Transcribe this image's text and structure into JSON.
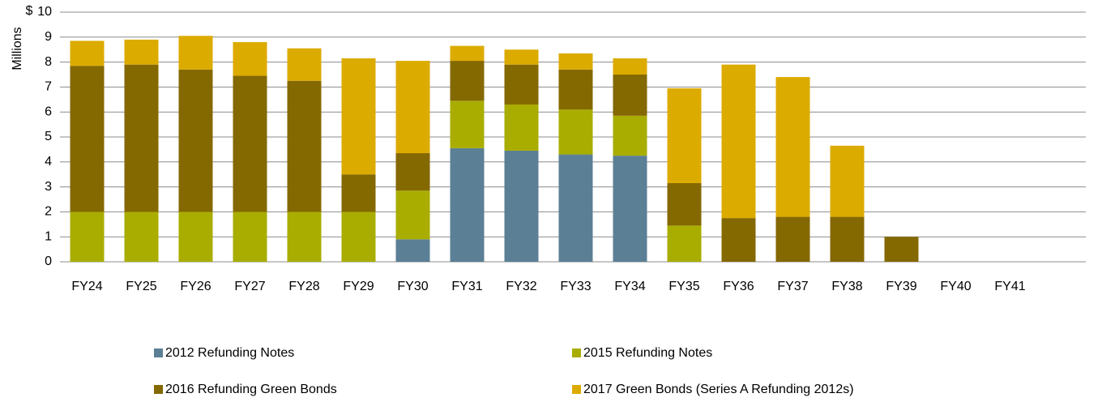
{
  "chart_data": {
    "type": "stacked_bar",
    "ylabel": "Millions",
    "y_unit_label": "$",
    "categories": [
      "FY24",
      "FY25",
      "FY26",
      "FY27",
      "FY28",
      "FY29",
      "FY30",
      "FY31",
      "FY32",
      "FY33",
      "FY34",
      "FY35",
      "FY36",
      "FY37",
      "FY38",
      "FY39",
      "FY40",
      "FY41"
    ],
    "series": [
      {
        "name": "2012 Refunding Notes",
        "color": "#5b7f95",
        "values": [
          0,
          0,
          0,
          0,
          0,
          0,
          0.9,
          4.55,
          4.45,
          4.3,
          4.25,
          0,
          0,
          0,
          0,
          0,
          0,
          0
        ]
      },
      {
        "name": "2015 Refunding Notes",
        "color": "#a8ad00",
        "values": [
          2.0,
          2.0,
          2.0,
          2.0,
          2.0,
          2.0,
          1.95,
          1.9,
          1.85,
          1.8,
          1.6,
          1.45,
          0,
          0,
          0,
          0,
          0,
          0
        ]
      },
      {
        "name": "2016 Refunding Green Bonds",
        "color": "#846800",
        "values": [
          5.85,
          5.9,
          5.7,
          5.45,
          5.25,
          1.5,
          1.5,
          1.6,
          1.6,
          1.6,
          1.65,
          1.7,
          1.75,
          1.8,
          1.8,
          1.0,
          0,
          0
        ]
      },
      {
        "name": "2017 Green Bonds (Series A Refunding 2012s)",
        "color": "#dcab00",
        "values": [
          1.0,
          1.0,
          1.35,
          1.35,
          1.3,
          4.65,
          3.7,
          0.6,
          0.6,
          0.65,
          0.65,
          3.8,
          6.15,
          5.6,
          2.85,
          0,
          0,
          0
        ]
      }
    ],
    "ylim": [
      0,
      10
    ],
    "yticks": [
      0,
      1,
      2,
      3,
      4,
      5,
      6,
      7,
      8,
      9,
      10
    ],
    "grid": true,
    "legend": "bottom"
  }
}
